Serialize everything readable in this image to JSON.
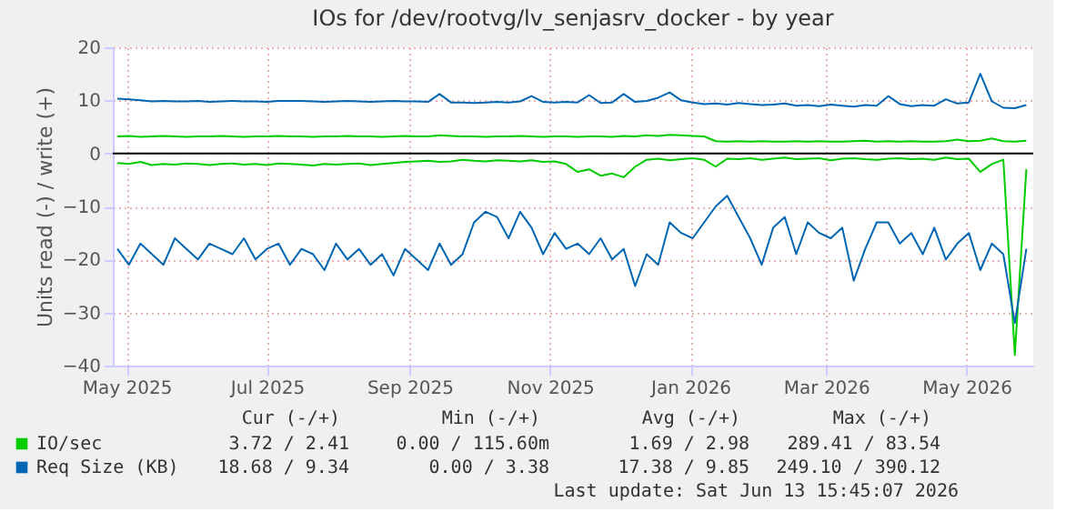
{
  "chart_data": {
    "type": "line",
    "title": "IOs for /dev/rootvg/lv_senjasrv_docker - by year",
    "ylabel": "Units read (-) / write (+)",
    "x": [
      "2025-04-27",
      "2025-05-02",
      "2025-05-07",
      "2025-05-12",
      "2025-05-17",
      "2025-05-22",
      "2025-05-27",
      "2025-06-01",
      "2025-06-06",
      "2025-06-11",
      "2025-06-16",
      "2025-06-21",
      "2025-06-26",
      "2025-07-01",
      "2025-07-06",
      "2025-07-11",
      "2025-07-16",
      "2025-07-21",
      "2025-07-26",
      "2025-07-31",
      "2025-08-05",
      "2025-08-10",
      "2025-08-15",
      "2025-08-20",
      "2025-08-25",
      "2025-08-30",
      "2025-09-04",
      "2025-09-09",
      "2025-09-14",
      "2025-09-19",
      "2025-09-24",
      "2025-09-29",
      "2025-10-04",
      "2025-10-09",
      "2025-10-14",
      "2025-10-19",
      "2025-10-24",
      "2025-10-29",
      "2025-11-03",
      "2025-11-08",
      "2025-11-13",
      "2025-11-18",
      "2025-11-23",
      "2025-11-28",
      "2025-12-03",
      "2025-12-08",
      "2025-12-13",
      "2025-12-18",
      "2025-12-23",
      "2025-12-28",
      "2026-01-02",
      "2026-01-07",
      "2026-01-12",
      "2026-01-17",
      "2026-01-22",
      "2026-01-27",
      "2026-02-01",
      "2026-02-06",
      "2026-02-11",
      "2026-02-16",
      "2026-02-21",
      "2026-02-26",
      "2026-03-03",
      "2026-03-08",
      "2026-03-13",
      "2026-03-18",
      "2026-03-23",
      "2026-03-28",
      "2026-04-02",
      "2026-04-07",
      "2026-04-12",
      "2026-04-17",
      "2026-04-22",
      "2026-04-27",
      "2026-05-02",
      "2026-05-07",
      "2026-05-12",
      "2026-05-17",
      "2026-05-22",
      "2026-05-27"
    ],
    "series": [
      {
        "name": "IO/sec",
        "color": "#00cc00",
        "values": [
          3.2,
          3.3,
          3.1,
          3.2,
          3.3,
          3.2,
          3.1,
          3.2,
          3.2,
          3.3,
          3.2,
          3.1,
          3.2,
          3.2,
          3.3,
          3.2,
          3.2,
          3.1,
          3.2,
          3.2,
          3.3,
          3.2,
          3.2,
          3.1,
          3.2,
          3.3,
          3.2,
          3.2,
          3.4,
          3.3,
          3.2,
          3.2,
          3.1,
          3.2,
          3.2,
          3.3,
          3.2,
          3.1,
          3.2,
          3.2,
          3.1,
          3.2,
          3.2,
          3.1,
          3.3,
          3.2,
          3.4,
          3.3,
          3.5,
          3.4,
          3.3,
          3.2,
          2.3,
          2.2,
          2.3,
          2.2,
          2.3,
          2.2,
          2.2,
          2.3,
          2.2,
          2.3,
          2.2,
          2.2,
          2.3,
          2.4,
          2.2,
          2.3,
          2.2,
          2.3,
          2.2,
          2.2,
          2.3,
          2.6,
          2.3,
          2.4,
          2.8,
          2.3,
          2.2,
          2.4
        ]
      },
      {
        "color": "#00cc00",
        "values": [
          -1.8,
          -2.0,
          -1.6,
          -2.2,
          -2.0,
          -2.1,
          -1.9,
          -2.0,
          -2.2,
          -2.0,
          -1.9,
          -2.1,
          -2.0,
          -2.2,
          -1.9,
          -2.0,
          -2.1,
          -2.3,
          -2.0,
          -2.1,
          -2.0,
          -1.9,
          -2.2,
          -2.0,
          -1.8,
          -1.6,
          -1.5,
          -1.4,
          -1.6,
          -1.5,
          -1.2,
          -1.4,
          -1.5,
          -1.3,
          -1.4,
          -1.5,
          -1.3,
          -1.6,
          -1.5,
          -2.0,
          -3.5,
          -3.0,
          -4.2,
          -3.8,
          -4.5,
          -2.5,
          -1.2,
          -1.0,
          -1.3,
          -1.1,
          -0.9,
          -1.2,
          -2.5,
          -1.0,
          -1.1,
          -0.9,
          -1.2,
          -1.0,
          -0.8,
          -1.1,
          -1.0,
          -0.9,
          -1.3,
          -1.0,
          -0.9,
          -1.1,
          -1.2,
          -1.0,
          -0.9,
          -1.1,
          -1.0,
          -1.2,
          -0.8,
          -1.1,
          -1.0,
          -3.5,
          -2.0,
          -1.2,
          -38.0,
          -3.0
        ]
      },
      {
        "name": "Req Size (KB)",
        "color": "#0066b3",
        "values": [
          10.3,
          10.2,
          10.0,
          9.8,
          9.9,
          9.8,
          9.8,
          9.9,
          9.7,
          9.8,
          9.9,
          9.8,
          9.8,
          9.7,
          9.9,
          9.9,
          9.9,
          9.8,
          9.7,
          9.8,
          9.9,
          9.8,
          9.7,
          9.8,
          9.9,
          9.8,
          9.8,
          9.7,
          11.2,
          9.6,
          9.6,
          9.5,
          9.6,
          9.7,
          9.6,
          9.8,
          10.8,
          9.7,
          9.6,
          9.7,
          9.6,
          11.0,
          9.5,
          9.6,
          11.2,
          9.7,
          9.9,
          10.5,
          11.5,
          10.0,
          9.6,
          9.3,
          9.4,
          9.2,
          9.5,
          9.3,
          9.1,
          9.2,
          9.4,
          9.0,
          9.1,
          8.9,
          9.2,
          9.0,
          8.8,
          9.1,
          9.0,
          10.8,
          9.3,
          8.9,
          9.1,
          9.0,
          10.2,
          9.4,
          9.6,
          15.0,
          9.8,
          8.6,
          8.5,
          9.1
        ]
      },
      {
        "color": "#0066b3",
        "values": [
          -18,
          -21,
          -17,
          -19,
          -21,
          -16,
          -18,
          -20,
          -17,
          -18,
          -19,
          -16,
          -20,
          -18,
          -17,
          -21,
          -18,
          -19,
          -22,
          -17,
          -20,
          -18,
          -21,
          -19,
          -23,
          -18,
          -20,
          -22,
          -17,
          -21,
          -19,
          -13,
          -11,
          -12,
          -16,
          -11,
          -14,
          -19,
          -15,
          -18,
          -17,
          -19,
          -16,
          -20,
          -18,
          -25,
          -19,
          -21,
          -13,
          -15,
          -16,
          -13,
          -10,
          -8,
          -12,
          -16,
          -21,
          -14,
          -12,
          -19,
          -13,
          -15,
          -16,
          -14,
          -24,
          -18,
          -13,
          -13,
          -17,
          -15,
          -19,
          -14,
          -20,
          -17,
          -15,
          -22,
          -17,
          -19,
          -32,
          -18
        ]
      }
    ],
    "xlim": [
      "2025-04-25",
      "2026-05-30"
    ],
    "xticks": [
      {
        "value": "2025-05-01",
        "label": "May 2025"
      },
      {
        "value": "2025-07-01",
        "label": "Jul 2025"
      },
      {
        "value": "2025-09-01",
        "label": "Sep 2025"
      },
      {
        "value": "2025-11-01",
        "label": "Nov 2025"
      },
      {
        "value": "2026-01-01",
        "label": "Jan 2026"
      },
      {
        "value": "2026-03-01",
        "label": "Mar 2026"
      },
      {
        "value": "2026-05-01",
        "label": "May 2026"
      }
    ],
    "ylim": [
      -40,
      20
    ],
    "yticks": [
      -40,
      -30,
      -20,
      -10,
      0,
      10,
      20
    ],
    "ref_lines": [
      {
        "axis": "y",
        "value": 0,
        "color": "#000000"
      }
    ],
    "grid": true,
    "legend": "bottom",
    "annotations": [
      "Cur (-/+)",
      "Min (-/+)",
      "Avg (-/+)",
      "Max (-/+)",
      "3.72 /    2.41",
      "0.00 / 115.60m",
      "1.69 /    2.98",
      "289.41 /  83.54",
      "18.68 /    9.34",
      "0.00 /    3.38",
      "17.38 /    9.85",
      "249.10 / 390.12",
      "Last update: Sat Jun 13 15:45:07 2026"
    ]
  }
}
